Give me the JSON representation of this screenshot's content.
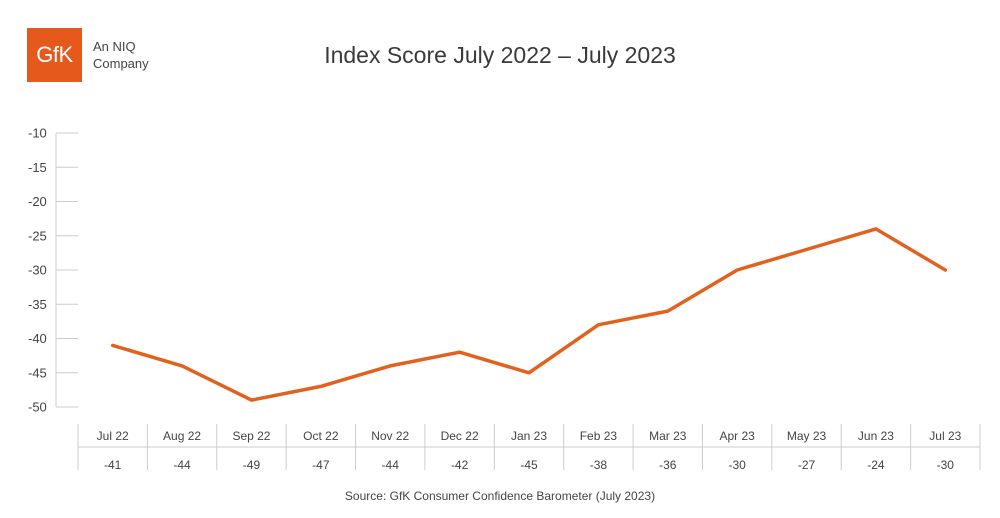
{
  "brand": {
    "logo_text": "GfK",
    "tagline_line1": "An NIQ",
    "tagline_line2": "Company"
  },
  "source": "Source: GfK Consumer Confidence Barometer (July 2023)",
  "colors": {
    "line": "#e0621e",
    "logo": "#e55a1c",
    "axis": "#cccccc"
  },
  "chart_data": {
    "type": "line",
    "title": "Index Score July 2022 – July 2023",
    "xlabel": "",
    "ylabel": "",
    "categories": [
      "Jul 22",
      "Aug 22",
      "Sep 22",
      "Oct 22",
      "Nov 22",
      "Dec 22",
      "Jan 23",
      "Feb 23",
      "Mar 23",
      "Apr 23",
      "May 23",
      "Jun 23",
      "Jul 23"
    ],
    "values": [
      -41,
      -44,
      -49,
      -47,
      -44,
      -42,
      -45,
      -38,
      -36,
      -30,
      -27,
      -24,
      -30
    ],
    "yticks": [
      "-10",
      "-15",
      "-20",
      "-25",
      "-30",
      "-35",
      "-40",
      "-45",
      "-50"
    ],
    "ylim": [
      -50,
      -10
    ],
    "grid": false,
    "legend": "none",
    "data_table": true
  }
}
